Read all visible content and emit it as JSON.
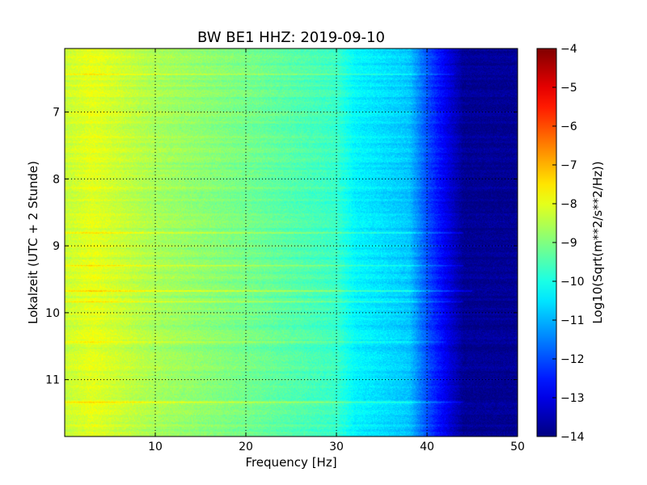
{
  "chart_data": {
    "type": "heatmap",
    "title": "BW BE1 HHZ: 2019-09-10",
    "xlabel": "Frequency [Hz]",
    "ylabel": "Lokalzeit (UTC + 2 Stunde)",
    "xlim": [
      0,
      50
    ],
    "ylim": [
      11.85,
      6.05
    ],
    "x_ticks": [
      10,
      20,
      30,
      40,
      50
    ],
    "y_ticks": [
      7,
      8,
      9,
      10,
      11
    ],
    "grid": true,
    "colormap": "jet",
    "colorbar": {
      "label": "Log10(Sqrt(m**2/s**2/Hz))",
      "range": [
        -14,
        -4
      ],
      "ticks": [
        -4,
        -5,
        -6,
        -7,
        -8,
        -9,
        -10,
        -11,
        -12,
        -13,
        -14
      ]
    },
    "frequency_profile": {
      "frequency": [
        0,
        3,
        10,
        20,
        30,
        32,
        38,
        40,
        44,
        50
      ],
      "level": [
        -8.3,
        -8.0,
        -8.6,
        -9.1,
        -9.7,
        -10.3,
        -10.8,
        -12.0,
        -13.8,
        -13.8
      ]
    },
    "bright_bands": [
      {
        "time": 6.43,
        "level_offset": 0.6,
        "max_frequency": 43
      },
      {
        "time": 6.6,
        "level_offset": 0.4,
        "max_frequency": 43
      },
      {
        "time": 8.8,
        "level_offset": 0.8,
        "max_frequency": 44
      },
      {
        "time": 9.29,
        "level_offset": 0.8,
        "max_frequency": 44
      },
      {
        "time": 9.67,
        "level_offset": 1.0,
        "max_frequency": 45
      },
      {
        "time": 9.83,
        "level_offset": 0.9,
        "max_frequency": 44
      },
      {
        "time": 10.43,
        "level_offset": 0.5,
        "max_frequency": 42
      },
      {
        "time": 11.33,
        "level_offset": 0.8,
        "max_frequency": 44
      }
    ]
  }
}
